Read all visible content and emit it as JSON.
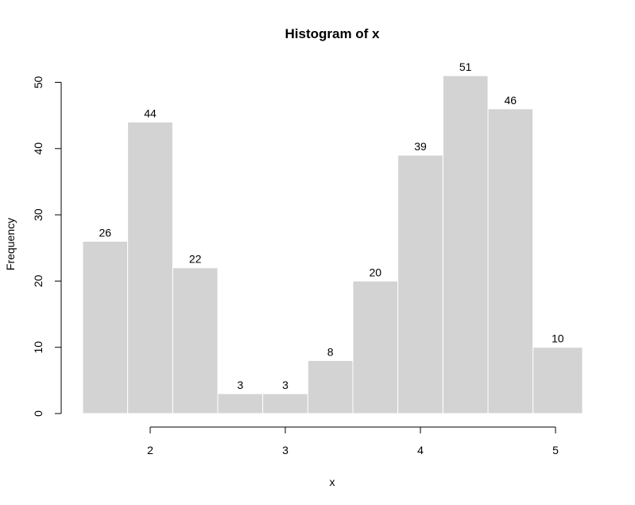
{
  "chart_data": {
    "type": "bar",
    "title": "Histogram of x",
    "xlabel": "x",
    "ylabel": "Frequency",
    "bin_edges": [
      1.5,
      1.833,
      2.167,
      2.5,
      2.833,
      3.167,
      3.5,
      3.833,
      4.167,
      4.5,
      4.833,
      5.2
    ],
    "values": [
      26,
      44,
      22,
      3,
      3,
      8,
      20,
      39,
      51,
      46,
      10
    ],
    "data_labels": [
      "26",
      "44",
      "22",
      "3",
      "3",
      "8",
      "20",
      "39",
      "51",
      "46",
      "10"
    ],
    "x_ticks": [
      2,
      3,
      4,
      5
    ],
    "x_tick_labels": [
      "2",
      "3",
      "4",
      "5"
    ],
    "y_ticks": [
      0,
      10,
      20,
      30,
      40,
      50
    ],
    "y_tick_labels": [
      "0",
      "10",
      "20",
      "30",
      "40",
      "50"
    ],
    "ylim": [
      0,
      50
    ],
    "grid": false,
    "bar_color": "#d3d3d3",
    "bar_border_color": "#ffffff"
  }
}
